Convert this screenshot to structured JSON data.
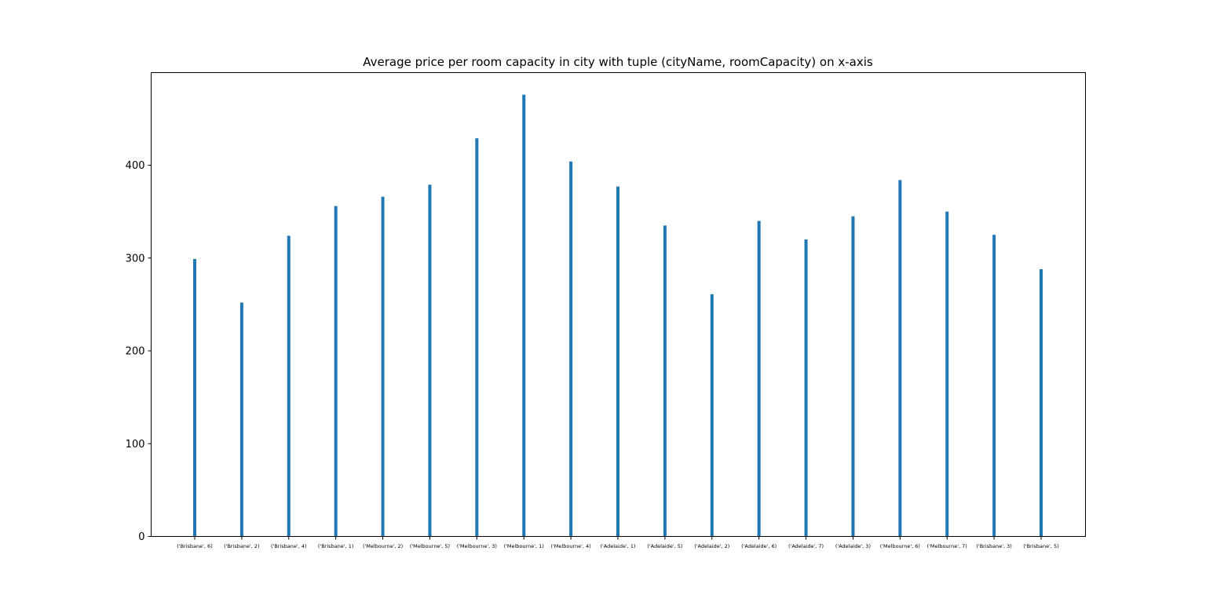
{
  "chart_data": {
    "type": "bar",
    "title": "Average price per room capacity in city with tuple (cityName, roomCapacity) on x-axis",
    "xlabel": "",
    "ylabel": "",
    "categories": [
      "('Brisbane', 6)",
      "('Brisbane', 2)",
      "('Brisbane', 4)",
      "('Brisbane', 1)",
      "('Melbourne', 2)",
      "('Melbourne', 5)",
      "('Melbourne', 3)",
      "('Melbourne', 1)",
      "('Melbourne', 4)",
      "('Adelaide', 1)",
      "('Adelaide', 5)",
      "('Adelaide', 2)",
      "('Adelaide', 6)",
      "('Adelaide', 7)",
      "('Adelaide', 3)",
      "('Melbourne', 6)",
      "('Melbourne', 7)",
      "('Brisbane', 3)",
      "('Brisbane', 5)"
    ],
    "values": [
      299,
      252,
      324,
      356,
      366,
      379,
      429,
      476,
      404,
      377,
      335,
      261,
      340,
      320,
      345,
      384,
      350,
      325,
      288
    ],
    "ylim": [
      0,
      500
    ],
    "yticks": [
      0,
      100,
      200,
      300,
      400
    ],
    "grid": false,
    "bar_color": "#1f77b4"
  }
}
